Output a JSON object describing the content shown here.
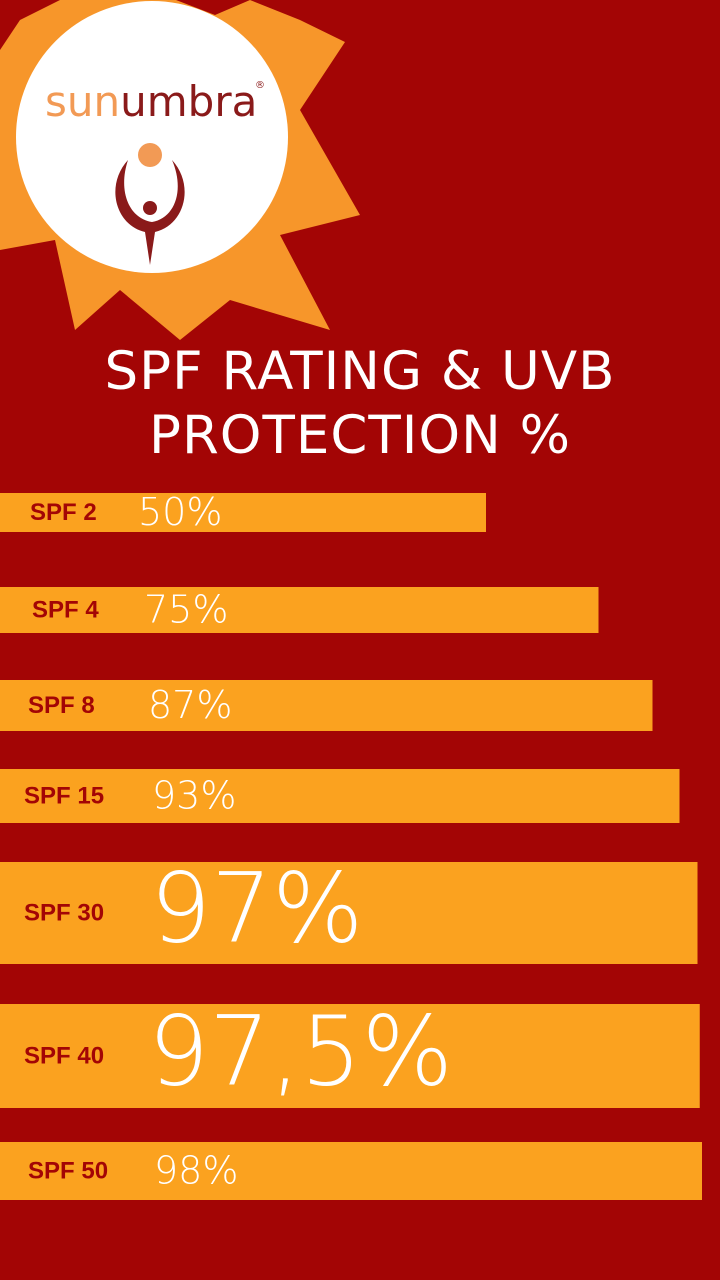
{
  "logo": {
    "part_1": "sun",
    "part_2": "umbra",
    "mark": "®"
  },
  "chart_data": {
    "type": "bar",
    "orientation": "horizontal",
    "title": "SPF RATING & UVB PROTECTION %",
    "categories": [
      "SPF 2",
      "SPF 4",
      "SPF 8",
      "SPF 15",
      "SPF 30",
      "SPF 40",
      "SPF 50"
    ],
    "values": [
      50,
      75,
      87,
      93,
      97,
      97.5,
      98
    ],
    "value_labels": [
      "50%",
      "75%",
      "87%",
      "93%",
      "97%",
      "97,5%",
      "98%"
    ],
    "color": "#fba21f"
  }
}
